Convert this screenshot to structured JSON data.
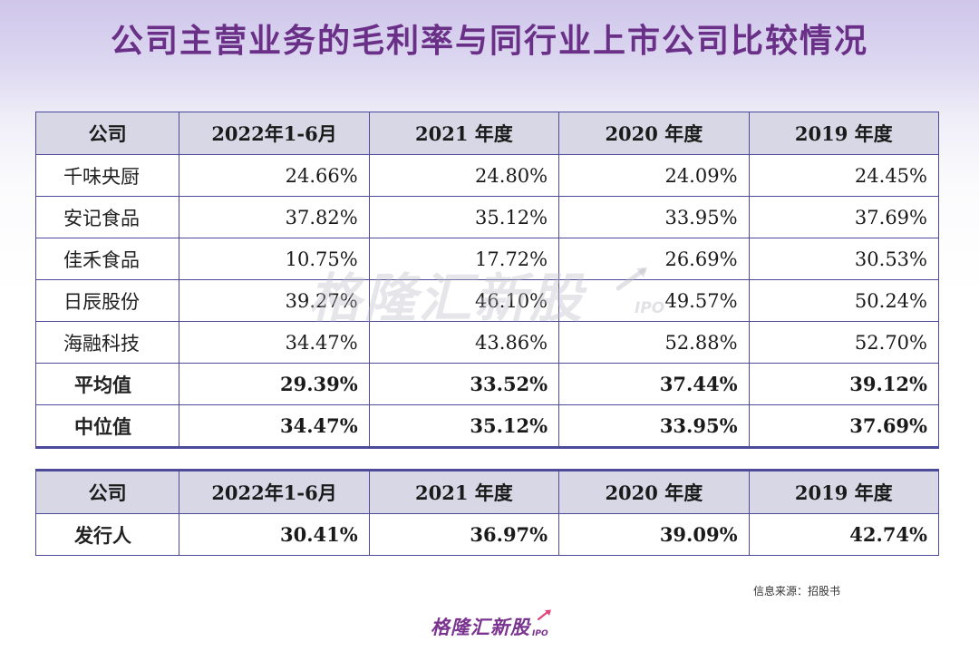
{
  "title": "公司主营业务的毛利率与同行业上市公司比较情况",
  "table": {
    "headers": [
      "公司",
      "2022年1-6月",
      "2021 年度",
      "2020 年度",
      "2019 年度"
    ],
    "rows": [
      {
        "name": "千味央厨",
        "values": [
          "24.66%",
          "24.80%",
          "24.09%",
          "24.45%"
        ]
      },
      {
        "name": "安记食品",
        "values": [
          "37.82%",
          "35.12%",
          "33.95%",
          "37.69%"
        ]
      },
      {
        "name": "佳禾食品",
        "values": [
          "10.75%",
          "17.72%",
          "26.69%",
          "30.53%"
        ]
      },
      {
        "name": "日辰股份",
        "values": [
          "39.27%",
          "46.10%",
          "49.57%",
          "50.24%"
        ]
      },
      {
        "name": "海融科技",
        "values": [
          "34.47%",
          "43.86%",
          "52.88%",
          "52.70%"
        ]
      },
      {
        "name": "平均值",
        "values": [
          "29.39%",
          "33.52%",
          "37.44%",
          "39.12%"
        ]
      },
      {
        "name": "中位值",
        "values": [
          "34.47%",
          "35.12%",
          "33.95%",
          "37.69%"
        ]
      }
    ]
  },
  "issuer_table": {
    "headers": [
      "公司",
      "2022年1-6月",
      "2021 年度",
      "2020 年度",
      "2019 年度"
    ],
    "rows": [
      {
        "name": "发行人",
        "values": [
          "30.41%",
          "36.97%",
          "39.09%",
          "42.74%"
        ]
      }
    ]
  },
  "watermark": {
    "text": "格隆汇新股",
    "sub": "IPO"
  },
  "source": "信息来源：招股书",
  "logo": {
    "text": "格隆汇新股",
    "sub": "IPO"
  },
  "colors": {
    "title": "#6a2f86",
    "border": "#4b4b9a",
    "header_bg": "#d7d7e6",
    "logo": "#7a3490"
  }
}
